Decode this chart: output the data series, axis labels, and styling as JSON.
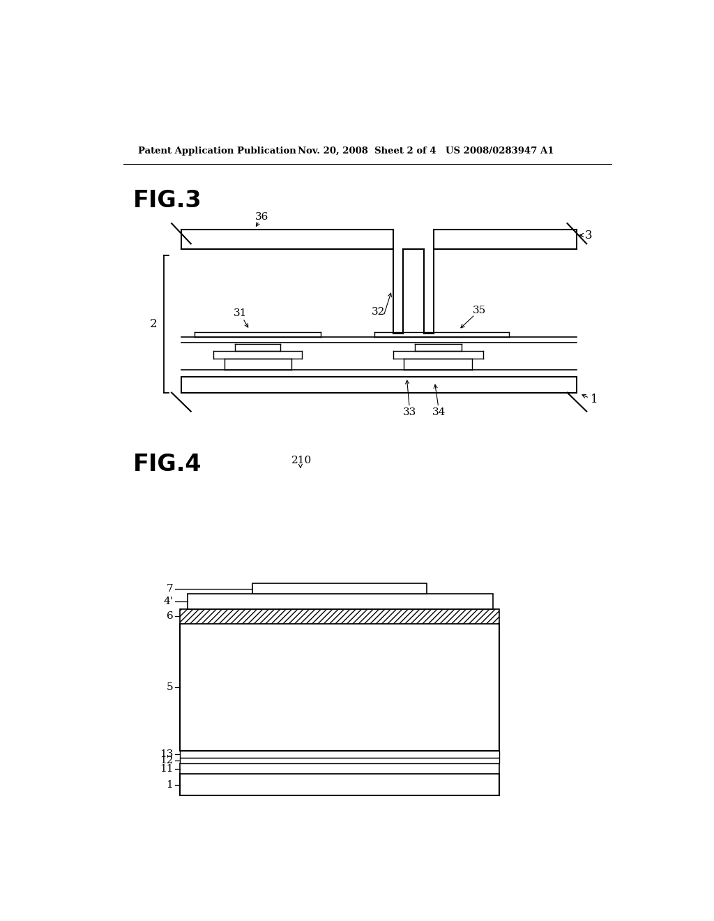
{
  "bg_color": "#ffffff",
  "header_left": "Patent Application Publication",
  "header_mid": "Nov. 20, 2008  Sheet 2 of 4",
  "header_right": "US 2008/0283947 A1",
  "fig3_label": "FIG.3",
  "fig4_label": "FIG.4",
  "line_color": "#000000"
}
